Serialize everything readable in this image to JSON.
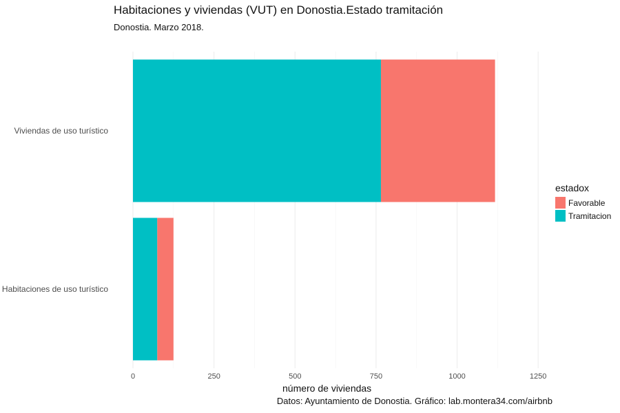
{
  "chart_data": {
    "type": "bar",
    "orientation": "horizontal",
    "stacked": true,
    "title": "Habitaciones y viviendas (VUT) en Donostia.Estado tramitación",
    "subtitle": "Donostia. Marzo 2018.",
    "caption": "Datos: Ayuntamiento de Donostia. Gráfico: lab.montera34.com/airbnb",
    "xlabel": "número de viviendas",
    "ylabel": "",
    "categories": [
      "Habitaciones de uso turístico",
      "Viviendas de uso turístico"
    ],
    "series": [
      {
        "name": "Tramitacion",
        "color": "#00BFC4",
        "values": [
          75,
          765
        ]
      },
      {
        "name": "Favorable",
        "color": "#F8766D",
        "values": [
          50,
          352
        ]
      }
    ],
    "xlim": [
      0,
      1290
    ],
    "xticks": [
      "0",
      "250",
      "500",
      "750",
      "1000",
      "1250"
    ],
    "grid": true,
    "legend": {
      "title": "estadox",
      "position": "right",
      "items": [
        "Favorable",
        "Tramitacion"
      ]
    }
  }
}
